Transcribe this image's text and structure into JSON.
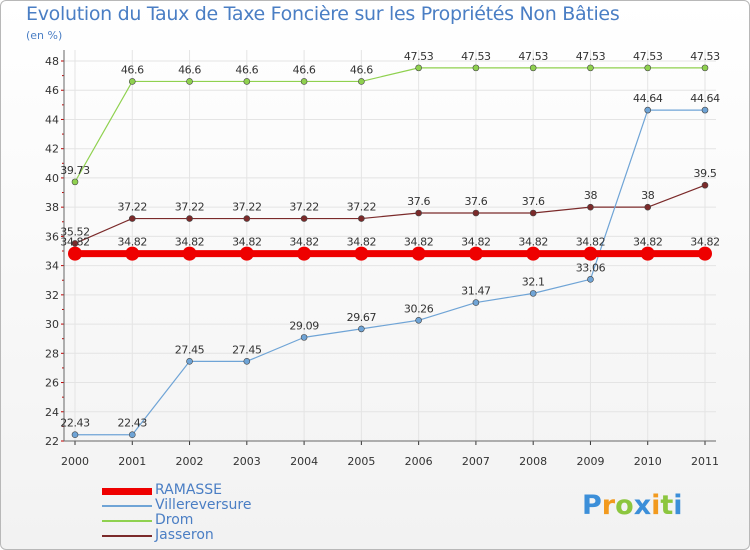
{
  "chart_data": {
    "type": "line",
    "title": "Evolution du Taux de Taxe Foncière sur les Propriétés Non Bâties",
    "ylabel": "(en %)",
    "xlabel": "",
    "ylim": [
      22,
      48
    ],
    "yticks": [
      22,
      24,
      26,
      28,
      30,
      32,
      34,
      36,
      38,
      40,
      42,
      44,
      46,
      48
    ],
    "categories": [
      "2000",
      "2001",
      "2002",
      "2003",
      "2004",
      "2005",
      "2006",
      "2007",
      "2008",
      "2009",
      "2010",
      "2011"
    ],
    "series": [
      {
        "name": "RAMASSE",
        "color": "#ee0000",
        "values": [
          34.82,
          34.82,
          34.82,
          34.82,
          34.82,
          34.82,
          34.82,
          34.82,
          34.82,
          34.82,
          34.82,
          34.82
        ],
        "labels": [
          "34.82",
          "34.82",
          "34.82",
          "34.82",
          "34.82",
          "34.82",
          "34.82",
          "34.82",
          "34.82",
          "34.82",
          "34.82",
          "34.82"
        ]
      },
      {
        "name": "Villereversure",
        "color": "#6fa4d6",
        "values": [
          22.43,
          22.43,
          27.45,
          27.45,
          29.09,
          29.67,
          30.26,
          31.47,
          32.1,
          33.06,
          44.64,
          44.64
        ],
        "labels": [
          "22.43",
          "22.43",
          "27.45",
          "27.45",
          "29.09",
          "29.67",
          "30.26",
          "31.47",
          "32.1",
          "33.06",
          "44.64",
          "44.64"
        ]
      },
      {
        "name": "Drom",
        "color": "#8fd14f",
        "values": [
          39.73,
          46.6,
          46.6,
          46.6,
          46.6,
          46.6,
          47.53,
          47.53,
          47.53,
          47.53,
          47.53,
          47.53
        ],
        "labels": [
          "39.73",
          "46.6",
          "46.6",
          "46.6",
          "46.6",
          "46.6",
          "47.53",
          "47.53",
          "47.53",
          "47.53",
          "47.53",
          "47.53"
        ]
      },
      {
        "name": "Jasseron",
        "color": "#7b2a2a",
        "values": [
          35.52,
          37.22,
          37.22,
          37.22,
          37.22,
          37.22,
          37.6,
          37.6,
          37.6,
          38,
          38,
          39.5
        ],
        "labels": [
          "35.52",
          "37.22",
          "37.22",
          "37.22",
          "37.22",
          "37.22",
          "37.6",
          "37.6",
          "37.6",
          "38",
          "38",
          "39.5"
        ]
      }
    ],
    "legend": "bottom-left",
    "grid": true
  },
  "logo": {
    "text": "Proxiti",
    "letters": [
      "P",
      "r",
      "o",
      "x",
      "i",
      "t",
      "i"
    ],
    "colors": [
      "#3c8fd9",
      "#f29a1e",
      "#8cc63f",
      "#3c8fd9",
      "#f29a1e",
      "#8cc63f",
      "#3c8fd9"
    ]
  }
}
